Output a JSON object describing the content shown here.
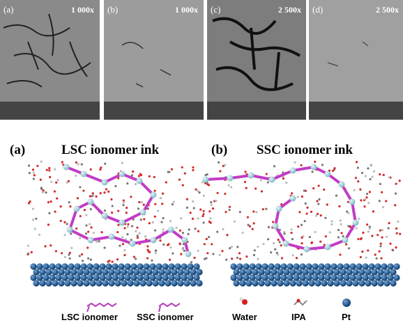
{
  "sem_panels": [
    {
      "label": "(a)",
      "magnification": "1 000x"
    },
    {
      "label": "(b)",
      "magnification": "1 000x"
    },
    {
      "label": "(c)",
      "magnification": "2 500x"
    },
    {
      "label": "(d)",
      "magnification": "2 500x"
    }
  ],
  "simulations": [
    {
      "label": "(a)",
      "title": "LSC ionomer ink"
    },
    {
      "label": "(b)",
      "title": "SSC ionomer ink"
    }
  ],
  "legend": [
    "LSC ionomer",
    "SSC ionomer",
    "Water",
    "IPA",
    "Pt"
  ]
}
